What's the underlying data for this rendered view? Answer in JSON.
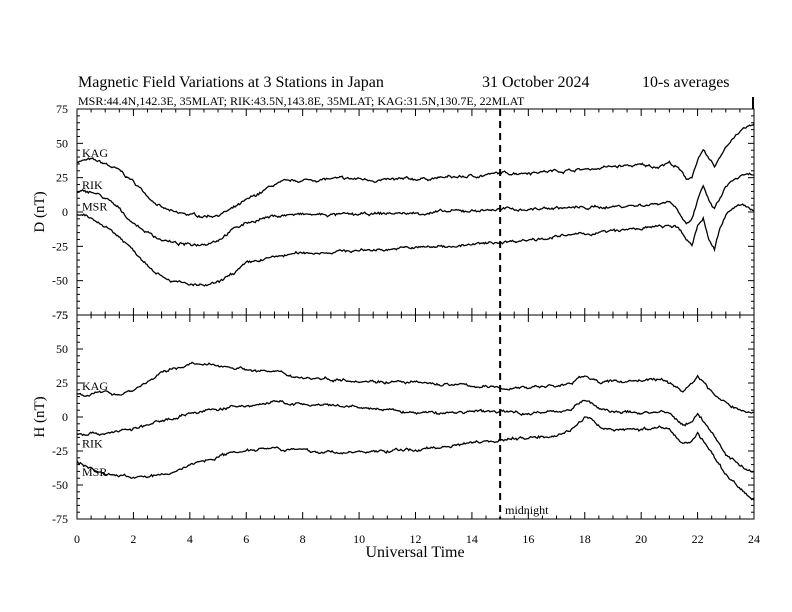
{
  "title": {
    "main": "Magnetic Field Variations at 3 Stations in Japan",
    "date": "31 October 2024",
    "averaging": "10-s averages",
    "stations_line": "MSR:44.4N,142.3E, 35MLAT;  RIK:43.5N,143.8E, 35MLAT;  KAG:31.5N,130.7E, 22MLAT"
  },
  "x_axis": {
    "label": "Universal Time",
    "range": [
      0,
      24
    ],
    "ticks": [
      "0",
      "2",
      "4",
      "6",
      "8",
      "10",
      "12",
      "14",
      "16",
      "18",
      "20",
      "22",
      "24"
    ]
  },
  "marker": {
    "x": 15,
    "label": "midnight"
  },
  "colors": {
    "trace": "#000000",
    "background": "#ffffff"
  },
  "chart_data": [
    {
      "type": "line",
      "panel": "top",
      "ylabel": "D (nT)",
      "ylim": [
        -75,
        75
      ],
      "yticks": [
        "75",
        "50",
        "25",
        "0",
        "-25",
        "-50",
        "-75"
      ],
      "grid": false,
      "series": [
        {
          "name": "KAG",
          "x": [
            0,
            0.5,
            1,
            1.5,
            2,
            2.5,
            3,
            3.5,
            4,
            4.5,
            5,
            5.5,
            6,
            6.5,
            7,
            7.5,
            8,
            9,
            10,
            11,
            12,
            13,
            14,
            15,
            16,
            17,
            18,
            19,
            20,
            20.5,
            21,
            21.3,
            21.6,
            21.8,
            22,
            22.2,
            22.4,
            22.6,
            22.8,
            23,
            23.3,
            23.6,
            24
          ],
          "y": [
            37,
            38,
            35,
            30,
            22,
            12,
            3,
            -1,
            -2,
            -3,
            -2,
            2,
            8,
            14,
            20,
            22,
            23,
            24,
            24,
            23,
            24,
            25,
            26,
            28,
            29,
            30,
            31,
            33,
            34,
            33,
            36,
            32,
            24,
            26,
            38,
            44,
            38,
            33,
            40,
            48,
            55,
            60,
            64
          ]
        },
        {
          "name": "RIK",
          "x": [
            0,
            0.5,
            1,
            1.5,
            2,
            2.5,
            3,
            3.5,
            4,
            4.5,
            5,
            5.5,
            6,
            6.5,
            7,
            7.5,
            8,
            9,
            10,
            11,
            12,
            13,
            14,
            15,
            16,
            17,
            18,
            19,
            20,
            20.5,
            21,
            21.3,
            21.6,
            21.8,
            22,
            22.2,
            22.4,
            22.6,
            22.8,
            23,
            23.3,
            23.6,
            24
          ],
          "y": [
            14,
            15,
            10,
            2,
            -8,
            -15,
            -20,
            -23,
            -24,
            -23,
            -20,
            -13,
            -8,
            -5,
            -3,
            -2,
            -2,
            -2,
            -2,
            -1,
            -1,
            0,
            1,
            2,
            2,
            3,
            3,
            4,
            5,
            6,
            8,
            2,
            -8,
            -5,
            8,
            18,
            8,
            2,
            10,
            18,
            24,
            26,
            27
          ]
        },
        {
          "name": "MSR",
          "x": [
            0,
            0.5,
            1,
            1.5,
            2,
            2.5,
            3,
            3.5,
            4,
            4.5,
            5,
            5.5,
            6,
            6.5,
            7,
            7.5,
            8,
            9,
            10,
            11,
            12,
            13,
            14,
            15,
            16,
            17,
            18,
            19,
            20,
            20.5,
            21,
            21.3,
            21.6,
            21.8,
            22,
            22.2,
            22.4,
            22.6,
            22.8,
            23,
            23.3,
            23.6,
            24
          ],
          "y": [
            -2,
            -5,
            -10,
            -18,
            -28,
            -38,
            -46,
            -51,
            -53,
            -54,
            -52,
            -45,
            -38,
            -35,
            -33,
            -31,
            -30,
            -29,
            -28,
            -27,
            -26,
            -25,
            -24,
            -22,
            -20,
            -18,
            -16,
            -14,
            -12,
            -11,
            -10,
            -12,
            -20,
            -24,
            -10,
            -4,
            -20,
            -26,
            -12,
            -2,
            3,
            5,
            1
          ]
        }
      ]
    },
    {
      "type": "line",
      "panel": "bottom",
      "ylabel": "H (nT)",
      "ylim": [
        -75,
        75
      ],
      "yticks": [
        "75",
        "50",
        "25",
        "0",
        "-25",
        "-50",
        "-75"
      ],
      "grid": false,
      "series": [
        {
          "name": "KAG",
          "x": [
            0,
            0.5,
            1,
            1.5,
            2,
            2.5,
            3,
            3.5,
            4,
            4.5,
            5,
            5.5,
            6,
            7,
            8,
            9,
            10,
            11,
            12,
            13,
            14,
            15,
            16,
            17,
            17.5,
            18,
            18.3,
            18.6,
            19,
            20,
            20.5,
            21,
            21.5,
            21.8,
            22,
            22.3,
            22.6,
            23,
            23.5,
            24
          ],
          "y": [
            17,
            17,
            18,
            17,
            20,
            26,
            32,
            36,
            39,
            38,
            38,
            37,
            35,
            33,
            29,
            28,
            27,
            26,
            25,
            24,
            23,
            21,
            22,
            23,
            24,
            31,
            28,
            25,
            26,
            27,
            28,
            25,
            19,
            25,
            30,
            24,
            16,
            10,
            5,
            3
          ]
        },
        {
          "name": "RIK",
          "x": [
            0,
            0.5,
            1,
            1.5,
            2,
            2.5,
            3,
            3.5,
            4,
            4.5,
            5,
            5.5,
            6,
            7,
            8,
            9,
            10,
            11,
            12,
            13,
            14,
            15,
            16,
            17,
            17.5,
            18,
            18.3,
            18.6,
            19,
            20,
            20.5,
            21,
            21.5,
            21.8,
            22,
            22.3,
            22.6,
            23,
            23.5,
            24
          ],
          "y": [
            -12,
            -12,
            -12,
            -10,
            -9,
            -6,
            -3,
            0,
            3,
            4,
            6,
            7,
            8,
            11,
            9,
            8,
            7,
            5,
            3,
            3,
            4,
            4,
            3,
            4,
            6,
            13,
            9,
            5,
            4,
            3,
            4,
            2,
            -6,
            -3,
            2,
            -5,
            -15,
            -27,
            -35,
            -41
          ]
        },
        {
          "name": "MSR",
          "x": [
            0,
            0.5,
            1,
            1.5,
            2,
            2.5,
            3,
            3.5,
            4,
            4.5,
            5,
            5.5,
            6,
            7,
            8,
            9,
            10,
            11,
            12,
            13,
            14,
            15,
            16,
            17,
            17.5,
            18,
            18.3,
            18.6,
            19,
            20,
            20.5,
            21,
            21.5,
            21.8,
            22,
            22.3,
            22.6,
            23,
            23.5,
            24
          ],
          "y": [
            -33,
            -38,
            -42,
            -43,
            -44,
            -44,
            -43,
            -40,
            -35,
            -32,
            -29,
            -26,
            -24,
            -22,
            -25,
            -26,
            -26,
            -25,
            -24,
            -22,
            -18,
            -17,
            -15,
            -13,
            -10,
            0,
            -4,
            -8,
            -9,
            -9,
            -8,
            -9,
            -20,
            -17,
            -12,
            -20,
            -30,
            -42,
            -52,
            -62
          ]
        }
      ]
    }
  ]
}
